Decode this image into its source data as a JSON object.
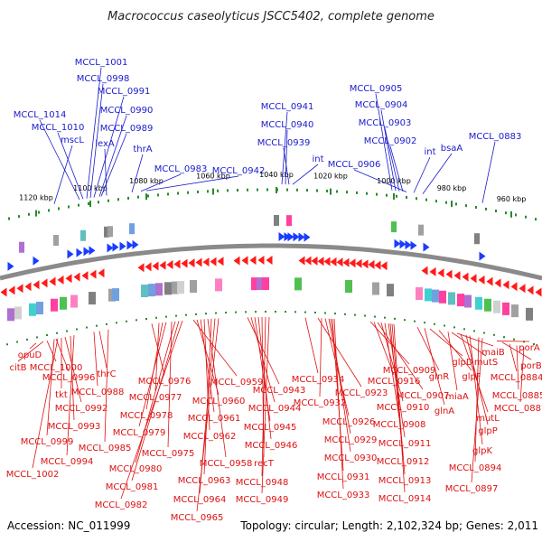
{
  "title": "Macrococcus caseolyticus JSCC5402, complete genome",
  "footer": {
    "accession": "Accession: NC_011999",
    "summary": "Topology: circular; Length: 2,102,324 bp; Genes: 2,011"
  },
  "colors": {
    "top_label": "#1a1acc",
    "bottom_label": "#dd1111",
    "backbone": "#8a8a8a",
    "tick_major": "#2a8a2a",
    "gene_forward": "#1a3cff",
    "gene_reverse": "#ff1a1a"
  },
  "scale_ticks": [
    "1120 kbp",
    "1100 kbp",
    "1080 kbp",
    "1060 kbp",
    "1040 kbp",
    "1020 kbp",
    "1000 kbp",
    "980 kbp",
    "960 kbp"
  ],
  "top_labels": [
    "MCCL_1001",
    "MCCL_0998",
    "MCCL_0991",
    "MCCL_1014",
    "MCCL_0990",
    "MCCL_1010",
    "MCCL_0989",
    "mscL",
    "lexA",
    "thrA",
    "MCCL_0983",
    "MCCL_0942",
    "MCCL_0941",
    "MCCL_0940",
    "MCCL_0939",
    "int",
    "MCCL_0905",
    "MCCL_0904",
    "MCCL_0903",
    "MCCL_0902",
    "MCCL_0906",
    "int",
    "bsaA",
    "MCCL_0883"
  ],
  "bottom_labels": [
    "opuD",
    "citB",
    "MCCL_1000",
    "MCCL_0996",
    "tkt",
    "thrC",
    "MCCL_0988",
    "MCCL_0992",
    "MCCL_0993",
    "MCCL_0999",
    "MCCL_0994",
    "MCCL_0985",
    "MCCL_1002",
    "MCCL_0976",
    "MCCL_0977",
    "MCCL_0978",
    "MCCL_0979",
    "MCCL_0975",
    "MCCL_0980",
    "MCCL_0981",
    "MCCL_0982",
    "MCCL_0959",
    "MCCL_0960",
    "MCCL_0961",
    "MCCL_0962",
    "MCCL_0958",
    "MCCL_0963",
    "MCCL_0964",
    "MCCL_0965",
    "MCCL_0943",
    "MCCL_0944",
    "MCCL_0945",
    "MCCL_0946",
    "recT",
    "MCCL_0948",
    "MCCL_0949",
    "MCCL_0934",
    "MCCL_0923",
    "MCCL_0932",
    "MCCL_0926",
    "MCCL_0929",
    "MCCL_0930",
    "MCCL_0931",
    "MCCL_0933",
    "MCCL_0909",
    "MCCL_0916",
    "MCCL_0907",
    "MCCL_0910",
    "MCCL_0908",
    "MCCL_0911",
    "MCCL_0912",
    "MCCL_0913",
    "MCCL_0914",
    "glnR",
    "glnA",
    "glpD",
    "glpF",
    "miaA",
    "mutS",
    "maiB",
    "mutL",
    "glpP",
    "glpK",
    "MCCL_0894",
    "MCCL_0897",
    "porA",
    "porB",
    "MCCL_0884",
    "MCCL_0885",
    "MCCL_0887"
  ]
}
